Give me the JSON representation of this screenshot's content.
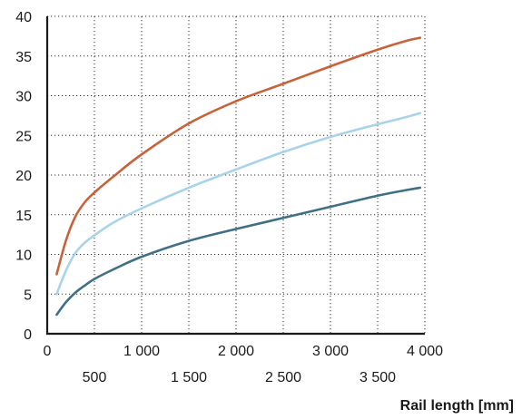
{
  "chart_data": {
    "type": "line",
    "title": "",
    "xlabel": "Rail length [mm]",
    "ylabel": "",
    "xlim": [
      0,
      4000
    ],
    "ylim": [
      0,
      40
    ],
    "grid": true,
    "x_ticks_major": [
      0,
      1000,
      2000,
      3000,
      4000
    ],
    "x_tick_labels_major": [
      "0",
      "1 000",
      "2 000",
      "3 000",
      "4 000"
    ],
    "x_ticks_minor": [
      500,
      1500,
      2500,
      3500
    ],
    "x_tick_labels_minor": [
      "500",
      "1 500",
      "2 500",
      "3 500"
    ],
    "y_ticks": [
      0,
      5,
      10,
      15,
      20,
      25,
      30,
      35,
      40
    ],
    "y_tick_labels": [
      "0",
      "5",
      "10",
      "15",
      "20",
      "25",
      "30",
      "35",
      "40"
    ],
    "series": [
      {
        "color": "#c8623a",
        "x": [
          100,
          200,
          300,
          400,
          500,
          700,
          1000,
          1500,
          2000,
          2500,
          3000,
          3500,
          3800,
          3950
        ],
        "values": [
          7.5,
          11.8,
          14.8,
          16.6,
          17.8,
          19.8,
          22.6,
          26.5,
          29.3,
          31.5,
          33.7,
          35.8,
          36.9,
          37.3
        ]
      },
      {
        "color": "#a9d3e8",
        "x": [
          100,
          200,
          300,
          400,
          500,
          700,
          1000,
          1500,
          2000,
          2500,
          3000,
          3500,
          3800,
          3950
        ],
        "values": [
          5.0,
          8.0,
          10.2,
          11.5,
          12.4,
          14.0,
          15.8,
          18.4,
          20.7,
          22.9,
          24.8,
          26.4,
          27.3,
          27.8
        ]
      },
      {
        "color": "#3f7085",
        "x": [
          100,
          200,
          300,
          400,
          500,
          700,
          1000,
          1500,
          2000,
          2500,
          3000,
          3500,
          3800,
          3950
        ],
        "values": [
          2.4,
          4.0,
          5.2,
          6.1,
          6.9,
          8.1,
          9.7,
          11.7,
          13.2,
          14.6,
          16.0,
          17.4,
          18.1,
          18.4
        ]
      }
    ]
  }
}
